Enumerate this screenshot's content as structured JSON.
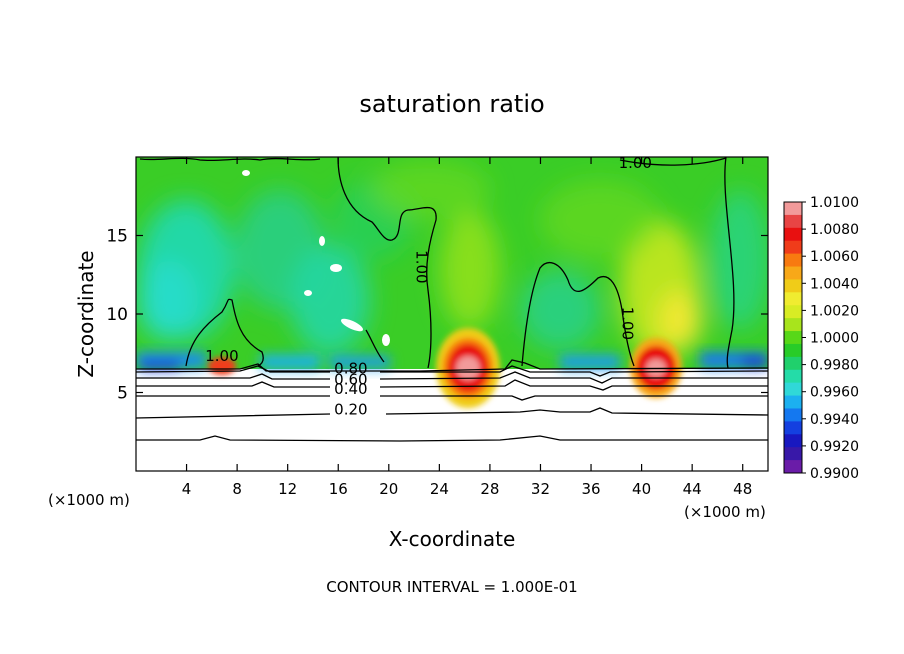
{
  "chart_data": {
    "type": "heatmap",
    "title": "saturation ratio",
    "xlabel": "X-coordinate",
    "ylabel": "Z-coordinate",
    "x_unit_left": "(×1000 m)",
    "x_unit_right": "(×1000 m)",
    "footer": "CONTOUR INTERVAL = 1.000E-01",
    "xlim": [
      0,
      50
    ],
    "ylim": [
      0,
      20
    ],
    "x_ticks": [
      4,
      8,
      12,
      16,
      20,
      24,
      28,
      32,
      36,
      40,
      44,
      48
    ],
    "y_ticks": [
      5,
      10,
      15
    ],
    "colorbar": {
      "labels": [
        "1.0100",
        "1.0080",
        "1.0060",
        "1.0040",
        "1.0020",
        "1.0000",
        "0.9980",
        "0.9960",
        "0.9940",
        "0.9920",
        "0.9900"
      ],
      "levels": [
        1.01,
        1.009,
        1.008,
        1.007,
        1.006,
        1.005,
        1.004,
        1.003,
        1.002,
        1.001,
        1.0,
        0.999,
        0.998,
        0.997,
        0.996,
        0.995,
        0.994,
        0.993,
        0.992,
        0.991,
        0.99
      ],
      "colors": [
        "#f29a9a",
        "#e84444",
        "#e81010",
        "#f03c1a",
        "#f87a10",
        "#f8a818",
        "#f0cc18",
        "#f0ec30",
        "#d8ec24",
        "#a8e41c",
        "#58d818",
        "#28cc28",
        "#20d06c",
        "#24dca8",
        "#30d8d8",
        "#1cb0f0",
        "#1478f0",
        "#1440e0",
        "#1818c0",
        "#3818a8",
        "#6a1ca8"
      ]
    },
    "contour_labels": [
      {
        "text": "1.00",
        "x": 39.5,
        "y": 19.3
      },
      {
        "text": "1.00",
        "x": 6.8,
        "y": 7.0
      },
      {
        "text": "1.00",
        "x": 22.2,
        "y": 13.0
      },
      {
        "text": "1.00",
        "x": 38.5,
        "y": 9.4
      },
      {
        "text": "0.80",
        "x": 17.0,
        "y": 6.2
      },
      {
        "text": "0.60",
        "x": 17.0,
        "y": 5.5
      },
      {
        "text": "0.40",
        "x": 17.0,
        "y": 4.9
      },
      {
        "text": "0.20",
        "x": 17.0,
        "y": 3.6
      }
    ],
    "grid": false,
    "legend": "right"
  }
}
